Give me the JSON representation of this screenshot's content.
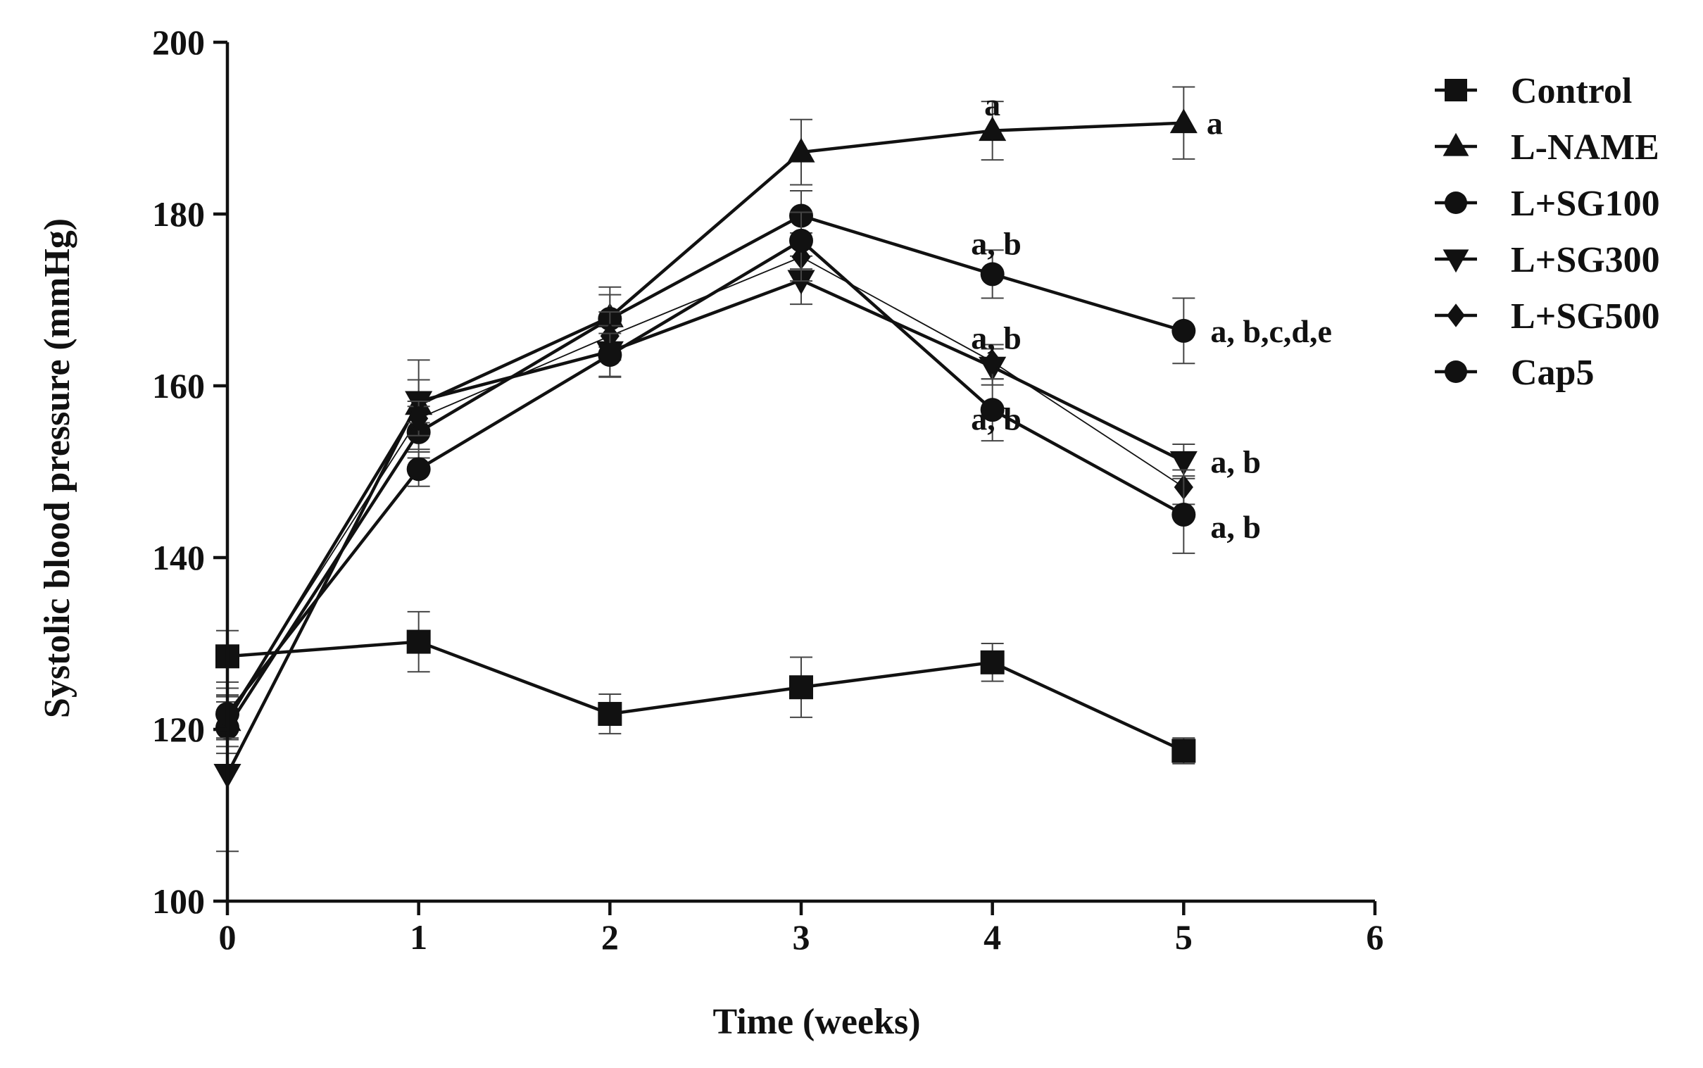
{
  "chart_data": {
    "type": "line",
    "title": "",
    "xlabel": "Time (weeks)",
    "ylabel": "Systolic blood pressure (mmHg)",
    "xlim": [
      0,
      6
    ],
    "ylim": [
      100,
      200
    ],
    "xticks": [
      0,
      1,
      2,
      3,
      4,
      5,
      6
    ],
    "yticks": [
      100,
      120,
      140,
      160,
      180,
      200
    ],
    "x": [
      0,
      1,
      2,
      3,
      4,
      5
    ],
    "grid": false,
    "legend_position": "right",
    "series": [
      {
        "name": "Control",
        "marker": "square",
        "line_width": 4.5,
        "values": [
          128.5,
          130.2,
          121.8,
          124.9,
          127.8,
          117.5
        ],
        "errors": [
          3.0,
          3.5,
          2.3,
          3.5,
          2.2,
          1.5
        ]
      },
      {
        "name": "L-NAME",
        "marker": "triangle-up",
        "line_width": 4.5,
        "values": [
          121.0,
          157.8,
          168.0,
          187.2,
          189.7,
          190.6
        ],
        "errors": [
          3.0,
          5.2,
          3.5,
          3.8,
          3.4,
          4.2
        ]
      },
      {
        "name": "L+SG100",
        "marker": "circle",
        "line_width": 4.5,
        "values": [
          120.2,
          154.6,
          167.8,
          179.8,
          173.0,
          166.4
        ],
        "errors": [
          3.0,
          3.0,
          2.8,
          2.9,
          2.8,
          3.8
        ]
      },
      {
        "name": "L+SG300",
        "marker": "triangle-down",
        "line_width": 4.5,
        "values": [
          114.8,
          158.2,
          164.0,
          172.3,
          162.2,
          151.2
        ],
        "errors": [
          9.0,
          2.5,
          3.0,
          2.8,
          2.1,
          2.0
        ]
      },
      {
        "name": "L+SG500",
        "marker": "diamond",
        "line_width": 1.8,
        "values": [
          121.5,
          156.2,
          165.8,
          175.0,
          162.8,
          148.2
        ],
        "errors": [
          2.5,
          2.0,
          2.8,
          2.8,
          2.0,
          2.0
        ]
      },
      {
        "name": "Cap5",
        "marker": "circle",
        "line_width": 4.5,
        "values": [
          121.8,
          150.3,
          163.6,
          176.9,
          157.2,
          145.0
        ],
        "errors": [
          3.0,
          2.0,
          2.5,
          3.3,
          3.6,
          4.5
        ]
      }
    ],
    "annotations": [
      {
        "text": "a",
        "x": 4,
        "y": 192.8,
        "anchor": "middle"
      },
      {
        "text": "a",
        "x": 5.12,
        "y": 190.6,
        "anchor": "start"
      },
      {
        "text": "a, b",
        "x": 4.02,
        "y": 176.6,
        "anchor": "middle"
      },
      {
        "text": "a, b,c,d,e",
        "x": 5.14,
        "y": 166.4,
        "anchor": "start"
      },
      {
        "text": "a, b",
        "x": 4.02,
        "y": 165.6,
        "anchor": "middle"
      },
      {
        "text": "a, b",
        "x": 4.02,
        "y": 156.2,
        "anchor": "middle"
      },
      {
        "text": "a, b",
        "x": 5.14,
        "y": 151.2,
        "anchor": "start"
      },
      {
        "text": "a, b",
        "x": 5.14,
        "y": 143.6,
        "anchor": "start"
      }
    ]
  }
}
